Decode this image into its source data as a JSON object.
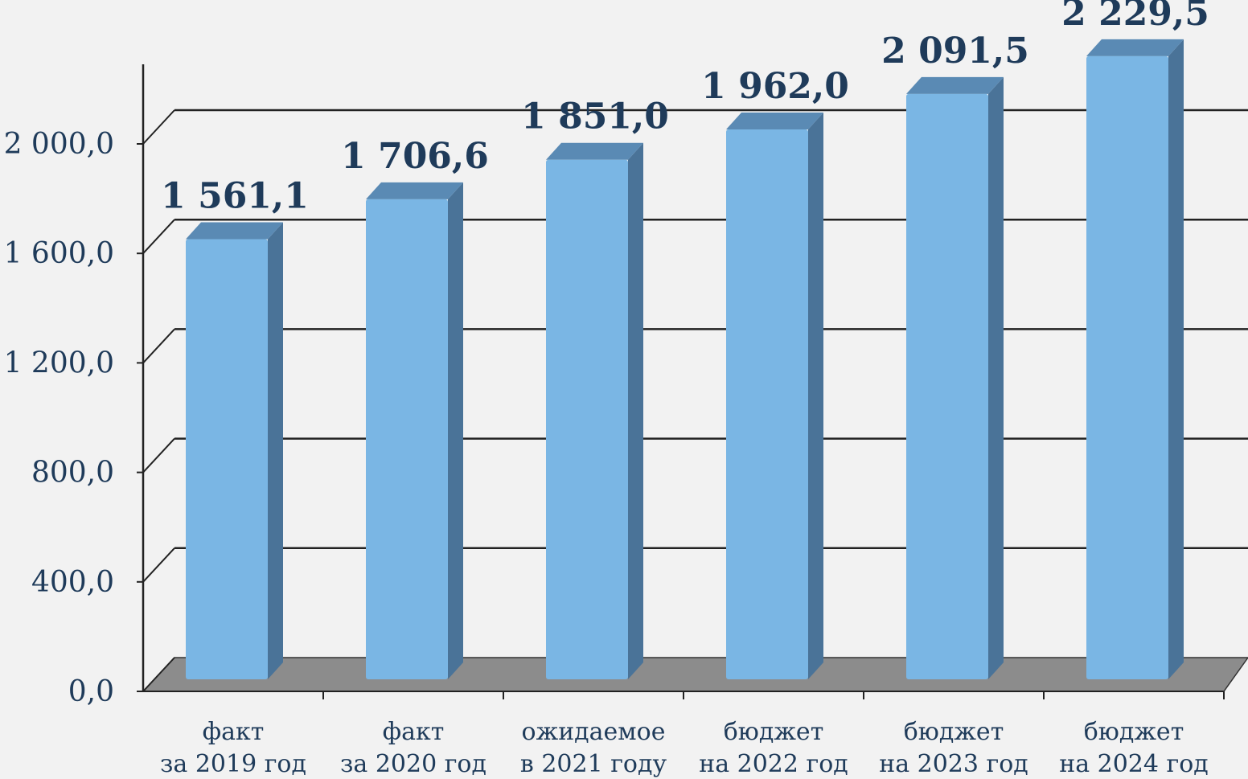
{
  "chart_data": {
    "type": "bar",
    "title": "",
    "xlabel": "",
    "ylabel": "",
    "categories": [
      [
        "факт",
        "за 2019 год"
      ],
      [
        "факт",
        "за 2020 год"
      ],
      [
        "ожидаемое",
        "в 2021 году"
      ],
      [
        "бюджет",
        "на 2022 год"
      ],
      [
        "бюджет",
        "на 2023 год"
      ],
      [
        "бюджет",
        "на 2024 год"
      ]
    ],
    "values": [
      1561.1,
      1706.6,
      1851.0,
      1962.0,
      2091.5,
      2229.5
    ],
    "value_labels": [
      "1 561,1",
      "1 706,6",
      "1 851,0",
      "1 962,0",
      "2 091,5",
      "2 229,5"
    ],
    "yticks": [
      0,
      400,
      800,
      1200,
      1600,
      2000
    ],
    "ytick_labels": [
      "0,0",
      "400,0",
      "800,0",
      "1 200,0",
      "1 600,0",
      "2 000,0"
    ],
    "ylim": [
      0,
      2000
    ],
    "grid": true,
    "style": "3d-bar",
    "colors": {
      "bar_front": "#7ab6e4",
      "bar_side": "#4a7398",
      "bar_top": "#5a8ab4",
      "floor": "#8c8c8c",
      "text": "#1f3b5a",
      "background": "#f2f2f2"
    }
  }
}
